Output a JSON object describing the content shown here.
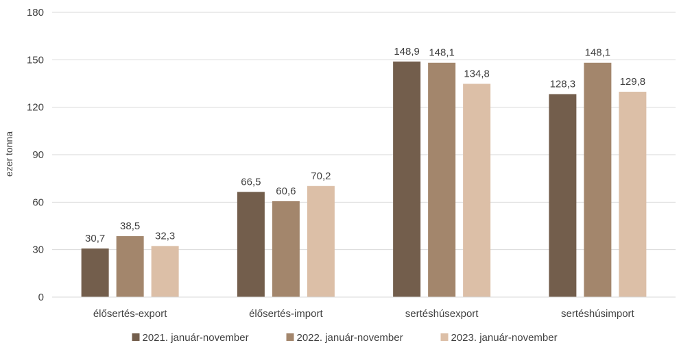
{
  "chart_data": {
    "type": "bar",
    "ylabel": "ezer tonna",
    "ylim": [
      0,
      180
    ],
    "yticks": [
      0,
      30,
      60,
      90,
      120,
      150,
      180
    ],
    "grid": true,
    "legend_position": "bottom",
    "categories": [
      "élősertés-export",
      "élősertés-import",
      "sertéshúsexport",
      "sertéshúsimport"
    ],
    "series": [
      {
        "name": "2021. január-november",
        "color": "#735e4c",
        "values": [
          30.7,
          66.5,
          148.9,
          128.3
        ],
        "labels": [
          "30,7",
          "66,5",
          "148,9",
          "128,3"
        ]
      },
      {
        "name": "2022. január-november",
        "color": "#a3866c",
        "values": [
          38.5,
          60.6,
          148.1,
          148.1
        ],
        "labels": [
          "38,5",
          "60,6",
          "148,1",
          "148,1"
        ]
      },
      {
        "name": "2023. január-november",
        "color": "#dcbfa7",
        "values": [
          32.3,
          70.2,
          134.8,
          129.8
        ],
        "labels": [
          "32,3",
          "70,2",
          "134,8",
          "129,8"
        ]
      }
    ]
  }
}
